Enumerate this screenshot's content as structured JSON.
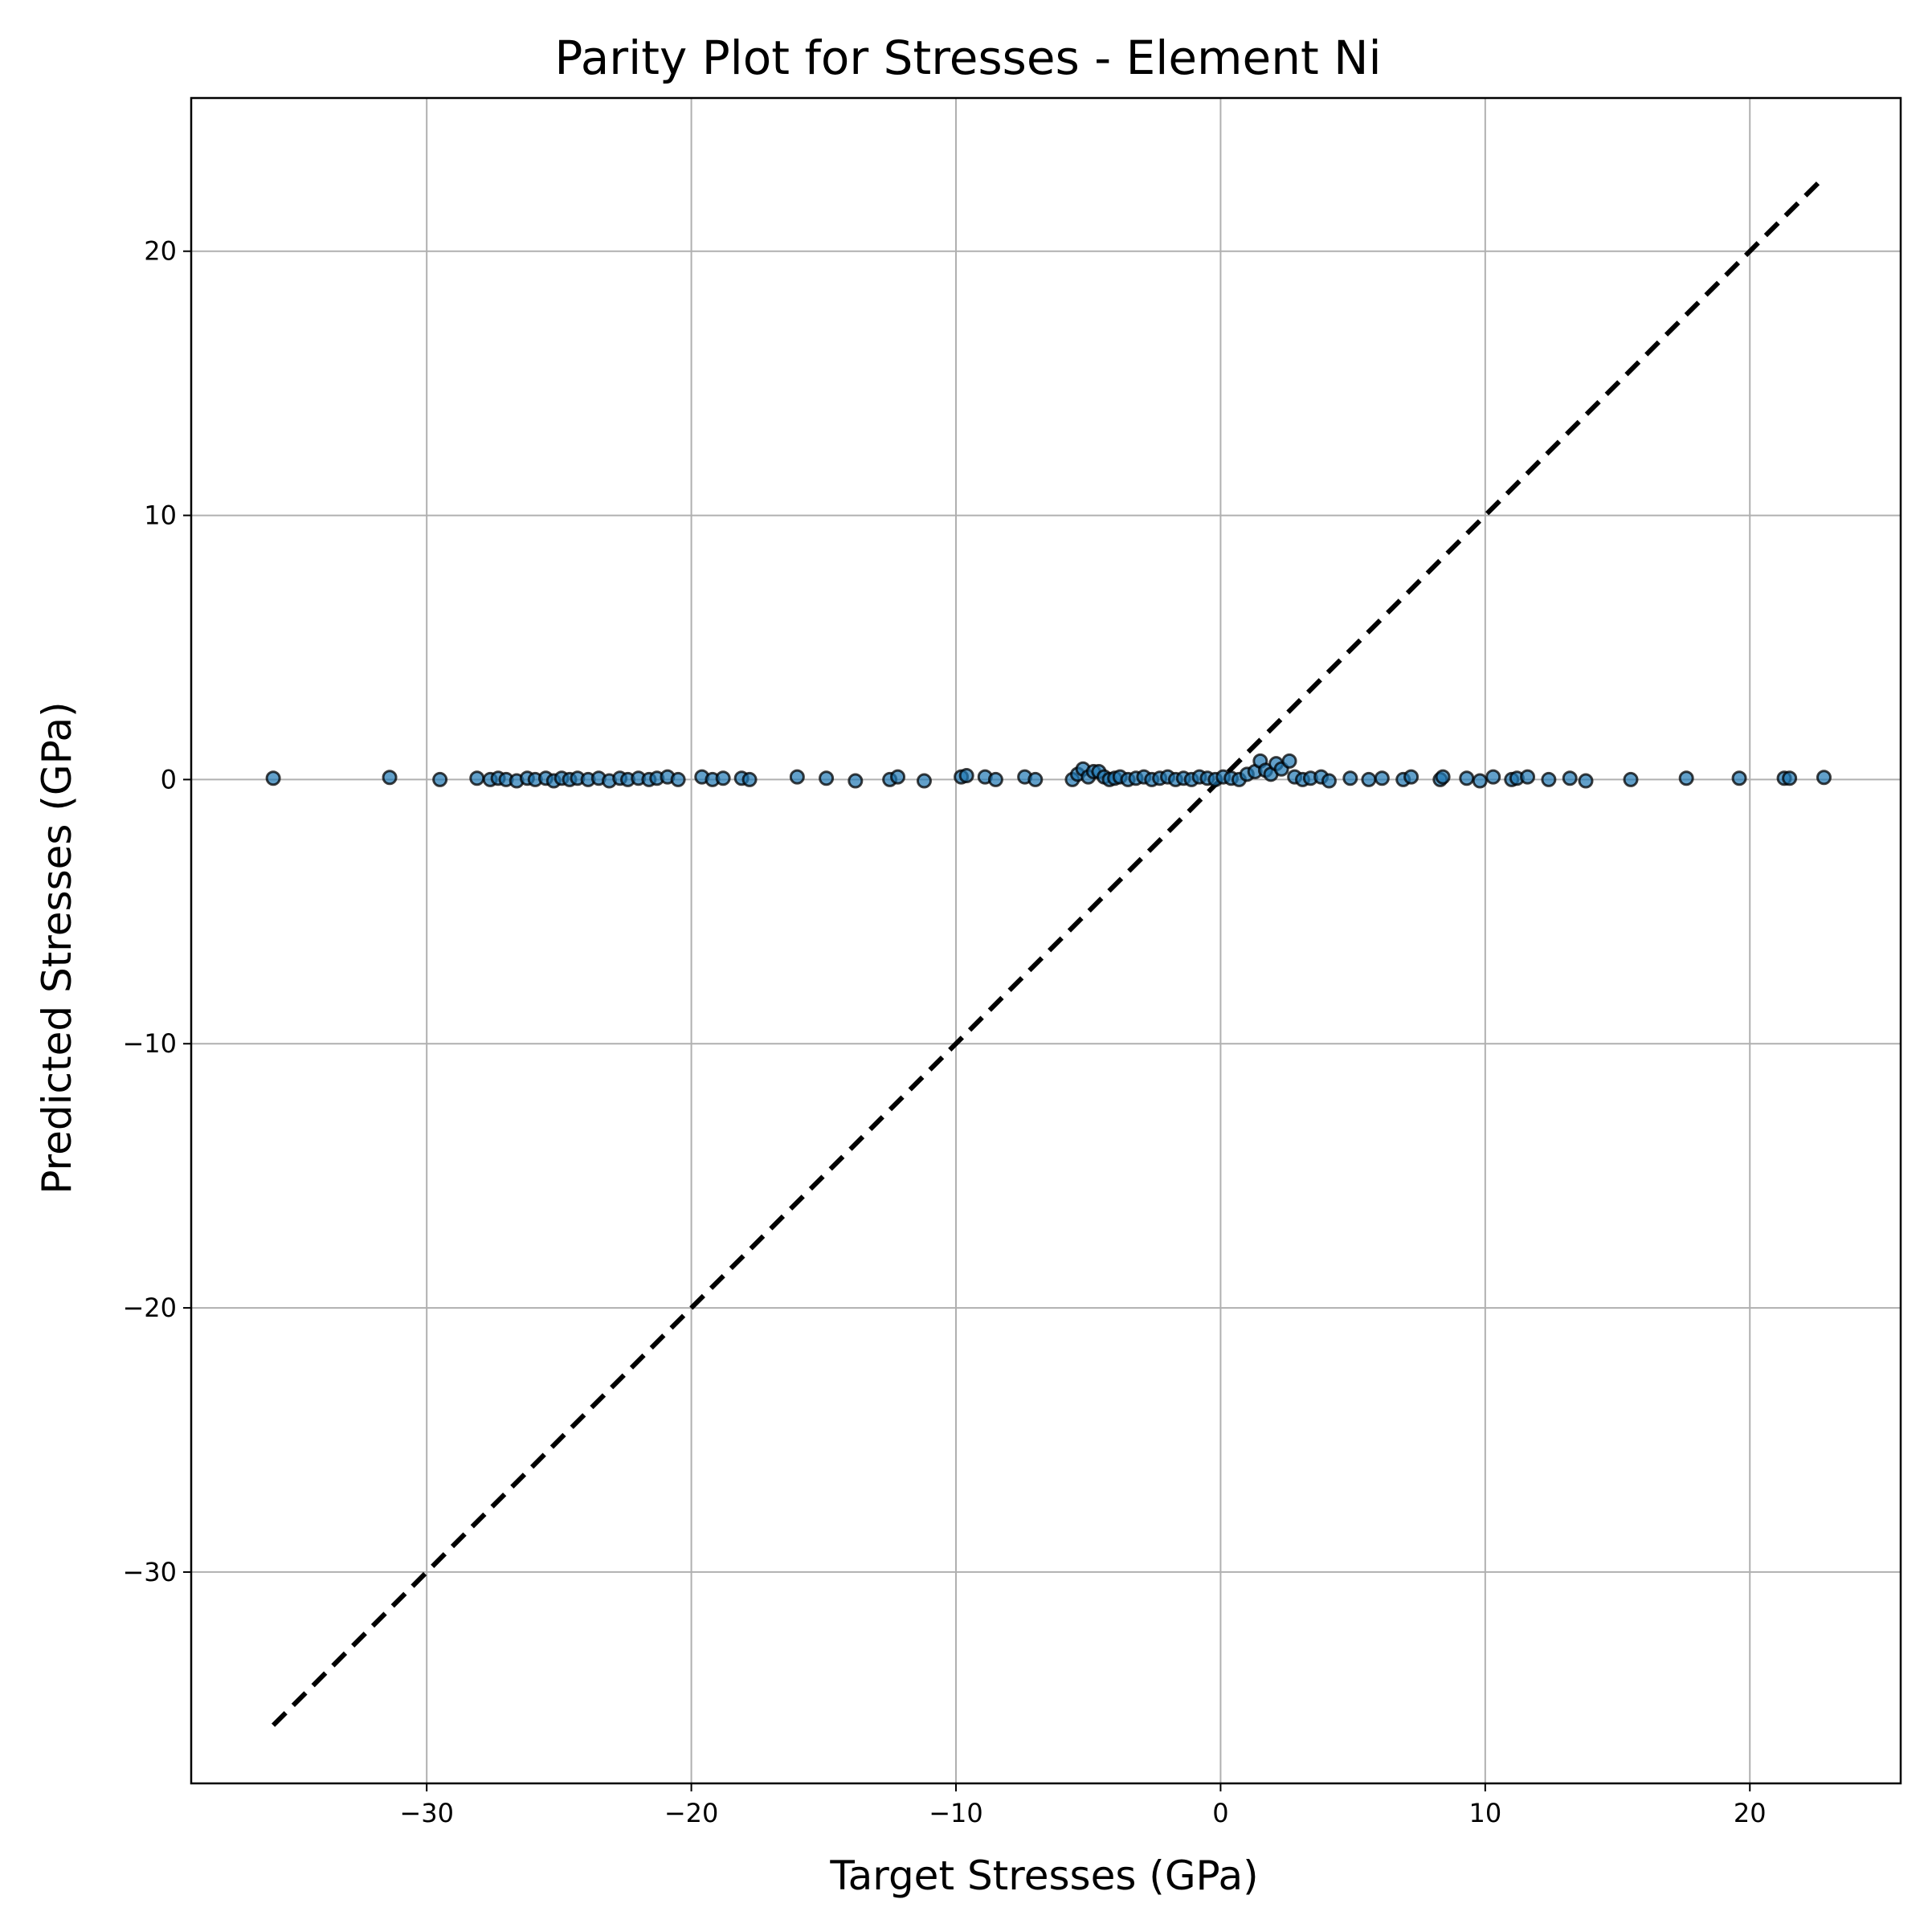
{
  "chart_data": {
    "type": "scatter",
    "title": "Parity Plot for Stresses - Element Ni",
    "xlabel": "Target Stresses (GPa)",
    "ylabel": "Predicted Stresses (GPa)",
    "xlim": [
      -38.9,
      25.7
    ],
    "ylim": [
      -38.0,
      25.8
    ],
    "xticks": [
      -30,
      -20,
      -10,
      0,
      10,
      20
    ],
    "xtick_labels": [
      "−30",
      "−20",
      "−10",
      "0",
      "10",
      "20"
    ],
    "yticks": [
      -30,
      -20,
      -10,
      0,
      10,
      20
    ],
    "ytick_labels": [
      "−30",
      "−20",
      "−10",
      "0",
      "10",
      "20"
    ],
    "grid": true,
    "legend": "none",
    "colors": {
      "marker_fill": "#1f77b4",
      "marker_edge": "#000000",
      "parity_line": "#000000",
      "grid": "#b0b0b0"
    },
    "parity_line": {
      "x": [
        -35.8,
        22.8
      ],
      "y": [
        -35.8,
        22.8
      ],
      "style": "dashed"
    },
    "series": [
      {
        "x": [
          -35.8,
          -31.4,
          -29.5,
          -28.1,
          -27.6,
          -27.3,
          -27.0,
          -26.6,
          -26.2,
          -25.9,
          -25.5,
          -25.2,
          -24.9,
          -24.6,
          -24.3,
          -23.9,
          -23.5,
          -23.1,
          -22.7,
          -22.4,
          -22.0,
          -21.6,
          -21.3,
          -20.9,
          -20.5,
          -19.6,
          -19.2,
          -18.8,
          -18.1,
          -17.8,
          -16.0,
          -14.9,
          -13.8,
          -12.5,
          -12.2,
          -11.2,
          -9.8,
          -9.6,
          -8.9,
          -8.5,
          -7.4,
          -7.0,
          -5.6,
          -5.4,
          -5.2,
          -5.0,
          -4.8,
          -4.6,
          -4.4,
          -4.2,
          -4.0,
          -3.8,
          -3.5,
          -3.2,
          -2.9,
          -2.6,
          -2.3,
          -2.0,
          -1.7,
          -1.4,
          -1.1,
          -0.8,
          -0.5,
          -0.2,
          0.1,
          0.4,
          0.7,
          1.0,
          1.3,
          1.5,
          1.7,
          1.9,
          2.1,
          2.3,
          2.6,
          2.8,
          3.1,
          3.4,
          3.8,
          4.1,
          4.9,
          5.6,
          6.1,
          6.9,
          7.2,
          8.3,
          8.4,
          9.3,
          9.8,
          10.3,
          11.0,
          11.2,
          11.6,
          12.4,
          13.2,
          13.8,
          15.5,
          17.6,
          19.6,
          21.3,
          21.5,
          22.8
        ],
        "y": [
          0.05,
          0.08,
          0.0,
          0.05,
          0.0,
          0.05,
          0.0,
          -0.05,
          0.05,
          0.0,
          0.05,
          -0.05,
          0.05,
          0.0,
          0.05,
          0.0,
          0.05,
          -0.05,
          0.05,
          0.0,
          0.05,
          0.0,
          0.05,
          0.1,
          0.0,
          0.1,
          0.0,
          0.05,
          0.05,
          0.0,
          0.1,
          0.05,
          -0.05,
          0.0,
          0.1,
          -0.05,
          0.1,
          0.15,
          0.1,
          0.0,
          0.1,
          0.0,
          0.0,
          0.2,
          0.4,
          0.1,
          0.3,
          0.3,
          0.1,
          0.0,
          0.05,
          0.1,
          0.0,
          0.05,
          0.1,
          0.0,
          0.05,
          0.1,
          0.0,
          0.05,
          0.0,
          0.1,
          0.05,
          0.0,
          0.1,
          0.05,
          0.0,
          0.2,
          0.3,
          0.7,
          0.35,
          0.2,
          0.6,
          0.4,
          0.7,
          0.1,
          0.0,
          0.05,
          0.1,
          -0.05,
          0.05,
          0.0,
          0.05,
          0.0,
          0.1,
          0.0,
          0.1,
          0.05,
          -0.05,
          0.1,
          0.0,
          0.05,
          0.1,
          0.0,
          0.05,
          -0.05,
          0.0,
          0.05,
          0.05,
          0.05,
          0.05,
          0.08
        ]
      }
    ]
  }
}
